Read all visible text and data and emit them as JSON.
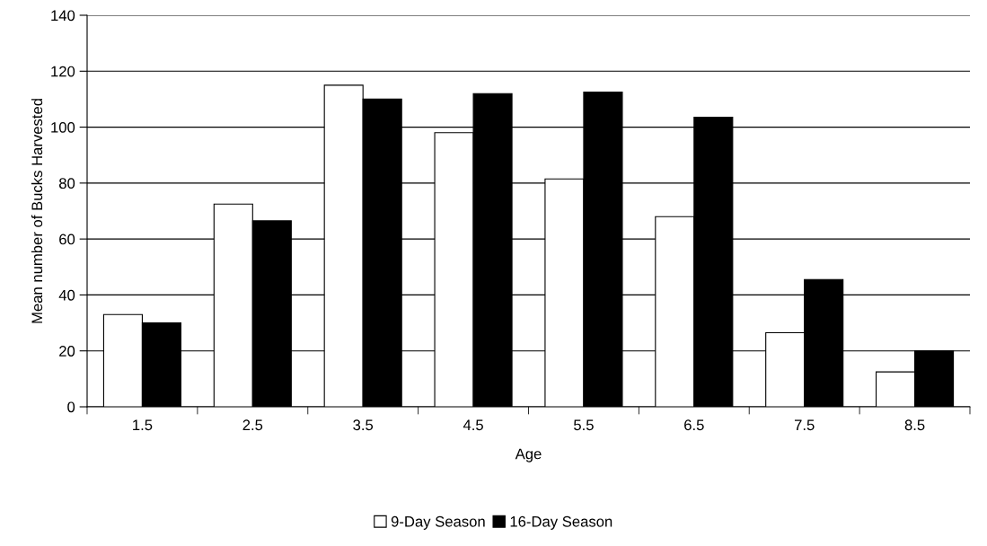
{
  "chart_data": {
    "type": "bar",
    "xlabel": "Age",
    "ylabel": "Mean number of Bucks Harvested",
    "categories": [
      "1.5",
      "2.5",
      "3.5",
      "4.5",
      "5.5",
      "6.5",
      "7.5",
      "8.5"
    ],
    "series": [
      {
        "name": "9-Day Season",
        "color": "#ffffff",
        "values": [
          33,
          72.5,
          115,
          98,
          81.5,
          68,
          26.5,
          12.5
        ]
      },
      {
        "name": "16-Day Season",
        "color": "#000000",
        "values": [
          30,
          66.5,
          110,
          112,
          112.5,
          103.5,
          45.5,
          20
        ]
      }
    ],
    "ylim": [
      0,
      140
    ],
    "yticks": [
      0,
      20,
      40,
      60,
      80,
      100,
      120,
      140
    ],
    "grid": "y",
    "legend": "bottom"
  }
}
